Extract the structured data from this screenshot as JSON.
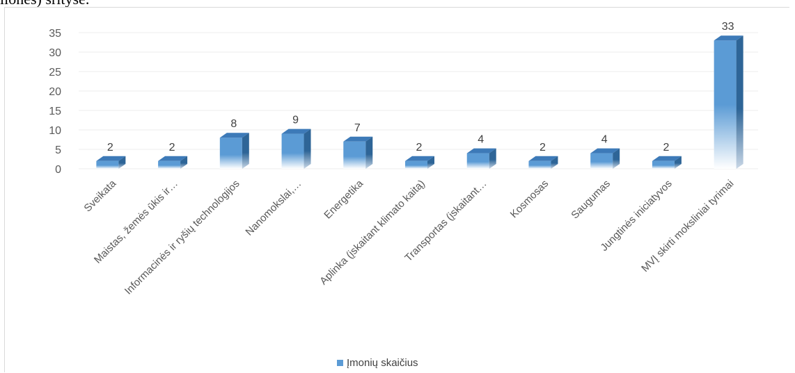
{
  "page_text": {
    "caption_fragment": "lionės) srityse."
  },
  "chart_data": {
    "type": "bar",
    "title": "",
    "xlabel": "",
    "ylabel": "",
    "ylim": [
      0,
      35
    ],
    "yticks": [
      0,
      5,
      10,
      15,
      20,
      25,
      30,
      35
    ],
    "grid": true,
    "style": "3d-column",
    "legend_position": "bottom",
    "categories": [
      "Sveikata",
      "Maistas, žemės ūkis ir…",
      "Informacinės ir ryšių technologijos",
      "Nanomokslai,…",
      "Energetika",
      "Aplinka (įskaitant klimato kaitą)",
      "Transportas (įskaitant…",
      "Kosmosas",
      "Saugumas",
      "Jungtinės iniciatyvos",
      "MVĮ skirti moksliniai tyrimai"
    ],
    "series": [
      {
        "name": "Įmonių skaičius",
        "values": [
          2,
          2,
          8,
          9,
          7,
          2,
          4,
          2,
          4,
          2,
          33
        ],
        "color": "#5b9bd5"
      }
    ]
  }
}
